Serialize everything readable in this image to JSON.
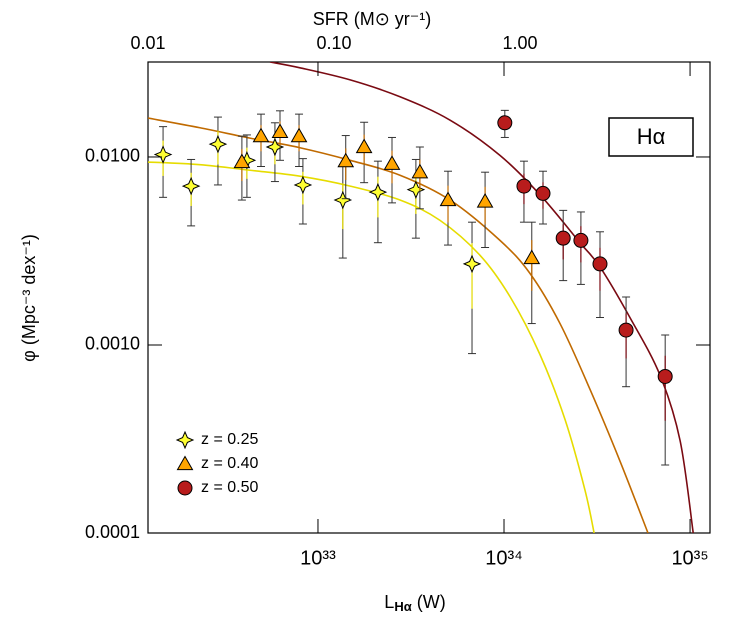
{
  "chart_data": {
    "type": "scatter",
    "log_x": true,
    "log_y": true,
    "xlabel": [
      "L",
      "Hα",
      " (W)"
    ],
    "ylabel": "φ (Mpc⁻³ dex⁻¹)",
    "x2label": "SFR (M⊙ yr⁻¹)",
    "annotation": "Hα",
    "legend": "lower left",
    "xlim": [
      1.22e+32,
      1.28e+35
    ],
    "xticks": [
      {
        "value": 1e+33,
        "label": "10³³"
      },
      {
        "value": 1e+34,
        "label": "10³⁴"
      },
      {
        "value": 1e+35,
        "label": "10³⁵"
      }
    ],
    "x2lim": [
      0.01,
      10.5
    ],
    "x2ticks": [
      0.01,
      {
        "value": 0.1,
        "label": "0.10"
      },
      {
        "value": 1,
        "label": "1.00"
      }
    ],
    "ylim": [
      0.0001,
      0.032
    ],
    "yticks": [
      0.0001,
      {
        "value": 0.001,
        "label": "0.0010"
      },
      {
        "value": 0.01,
        "label": "0.0100"
      }
    ],
    "series": [
      {
        "name": "z = 0.25",
        "marker": "star",
        "color": "#ffff33",
        "line_color": "#e6dc00",
        "x": [
          1.47e+32,
          2.08e+32,
          2.9e+32,
          4.15e+32,
          5.87e+32,
          8.3e+32,
          1.36e+33,
          2.1e+33,
          3.36e+33,
          6.73e+33
        ],
        "values": [
          0.0103,
          0.007,
          0.0117,
          0.0096,
          0.0113,
          0.0071,
          0.0059,
          0.0065,
          0.0067,
          0.0027
        ],
        "errors": [
          0.0042,
          0.0027,
          0.0046,
          0.0035,
          0.0039,
          0.0027,
          0.003,
          0.003,
          0.003,
          0.0018
        ],
        "fit_x": [
          1.22e+32,
          2.32e+32,
          4.31e+32,
          8e+32,
          1.49e+33,
          2.76e+33,
          4.53e+33,
          7.43e+33,
          1.08e+34,
          1.56e+34,
          2.13e+34,
          2.72e+34,
          3.05e+34
        ],
        "fit_values": [
          0.0094,
          0.0091,
          0.0085,
          0.0079,
          0.007,
          0.0059,
          0.0046,
          0.003,
          0.0018,
          0.00089,
          0.0004,
          0.00017,
          0.0001
        ]
      },
      {
        "name": "z = 0.40",
        "marker": "triangle",
        "color": "#ffa500",
        "line_color": "#c06a00",
        "x": [
          3.9e+32,
          4.94e+32,
          6.25e+32,
          7.91e+32,
          1.41e+33,
          1.77e+33,
          2.5e+33,
          3.53e+33,
          5e+33,
          7.91e+33,
          1.41e+34
        ],
        "values": [
          0.0094,
          0.0129,
          0.0136,
          0.0129,
          0.0095,
          0.0113,
          0.0092,
          0.0083,
          0.0059,
          0.0058,
          0.0029
        ],
        "errors": [
          0.0035,
          0.004,
          0.004,
          0.004,
          0.0035,
          0.004,
          0.0035,
          0.003,
          0.0025,
          0.0025,
          0.0016
        ],
        "fit_x": [
          1.22e+32,
          2.32e+32,
          4.31e+32,
          8e+32,
          1.49e+33,
          2.76e+33,
          5.13e+33,
          9.51e+33,
          1.38e+34,
          2e+34,
          2.9e+34,
          4.21e+34,
          5.94e+34
        ],
        "fit_values": [
          0.0161,
          0.0143,
          0.0126,
          0.0112,
          0.0096,
          0.008,
          0.0059,
          0.0036,
          0.0024,
          0.0013,
          0.00058,
          0.00024,
          0.0001
        ]
      },
      {
        "name": "z = 0.50",
        "marker": "circle",
        "color": "#b81c1c",
        "line_color": "#7a0a12",
        "x": [
          1.01e+34,
          1.28e+34,
          1.62e+34,
          2.08e+34,
          2.59e+34,
          3.28e+34,
          4.53e+34,
          7.35e+34
        ],
        "values": [
          0.0152,
          0.007,
          0.0064,
          0.0037,
          0.0036,
          0.0027,
          0.0012,
          0.00068
        ],
        "errors": [
          0.0025,
          0.0025,
          0.002,
          0.0015,
          0.0015,
          0.0013,
          0.0006,
          0.00045
        ],
        "fit_x": [
          5.52e+32,
          8e+32,
          1.49e+33,
          2.76e+33,
          5.13e+33,
          9.51e+33,
          1.56e+34,
          2.56e+34,
          3.28e+34,
          4.75e+34,
          6.9e+34,
          8.84e+34,
          1.04e+35
        ],
        "fit_values": [
          0.032,
          0.0298,
          0.0257,
          0.0209,
          0.0157,
          0.0102,
          0.0063,
          0.0035,
          0.0026,
          0.0014,
          0.00069,
          0.00031,
          0.0001
        ]
      }
    ]
  }
}
